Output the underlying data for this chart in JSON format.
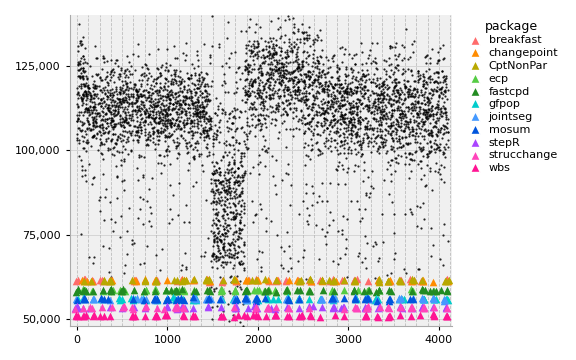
{
  "title": "",
  "xlabel": "",
  "ylabel": "",
  "xlim": [
    -80,
    4150
  ],
  "ylim": [
    48000,
    140000
  ],
  "yticks": [
    50000,
    75000,
    100000,
    125000
  ],
  "xticks": [
    0,
    1000,
    2000,
    3000,
    4000
  ],
  "background_color": "#ffffff",
  "panel_background": "#f0f0f0",
  "grid_color": "#b0b0b0",
  "packages": [
    "breakfast",
    "changepoint",
    "CptNonPar",
    "ecp",
    "fastcpd",
    "gfpop",
    "jointseg",
    "mosum",
    "stepR",
    "strucchange",
    "wbs"
  ],
  "package_colors": [
    "#FF6B6B",
    "#FF8C00",
    "#B8A800",
    "#55CC44",
    "#228B22",
    "#00CCCC",
    "#4499FF",
    "#0055DD",
    "#AA44FF",
    "#FF44BB",
    "#FF1493"
  ],
  "legend_title": "package",
  "legend_fontsize": 8,
  "triangle_size": 30,
  "seed": 123
}
